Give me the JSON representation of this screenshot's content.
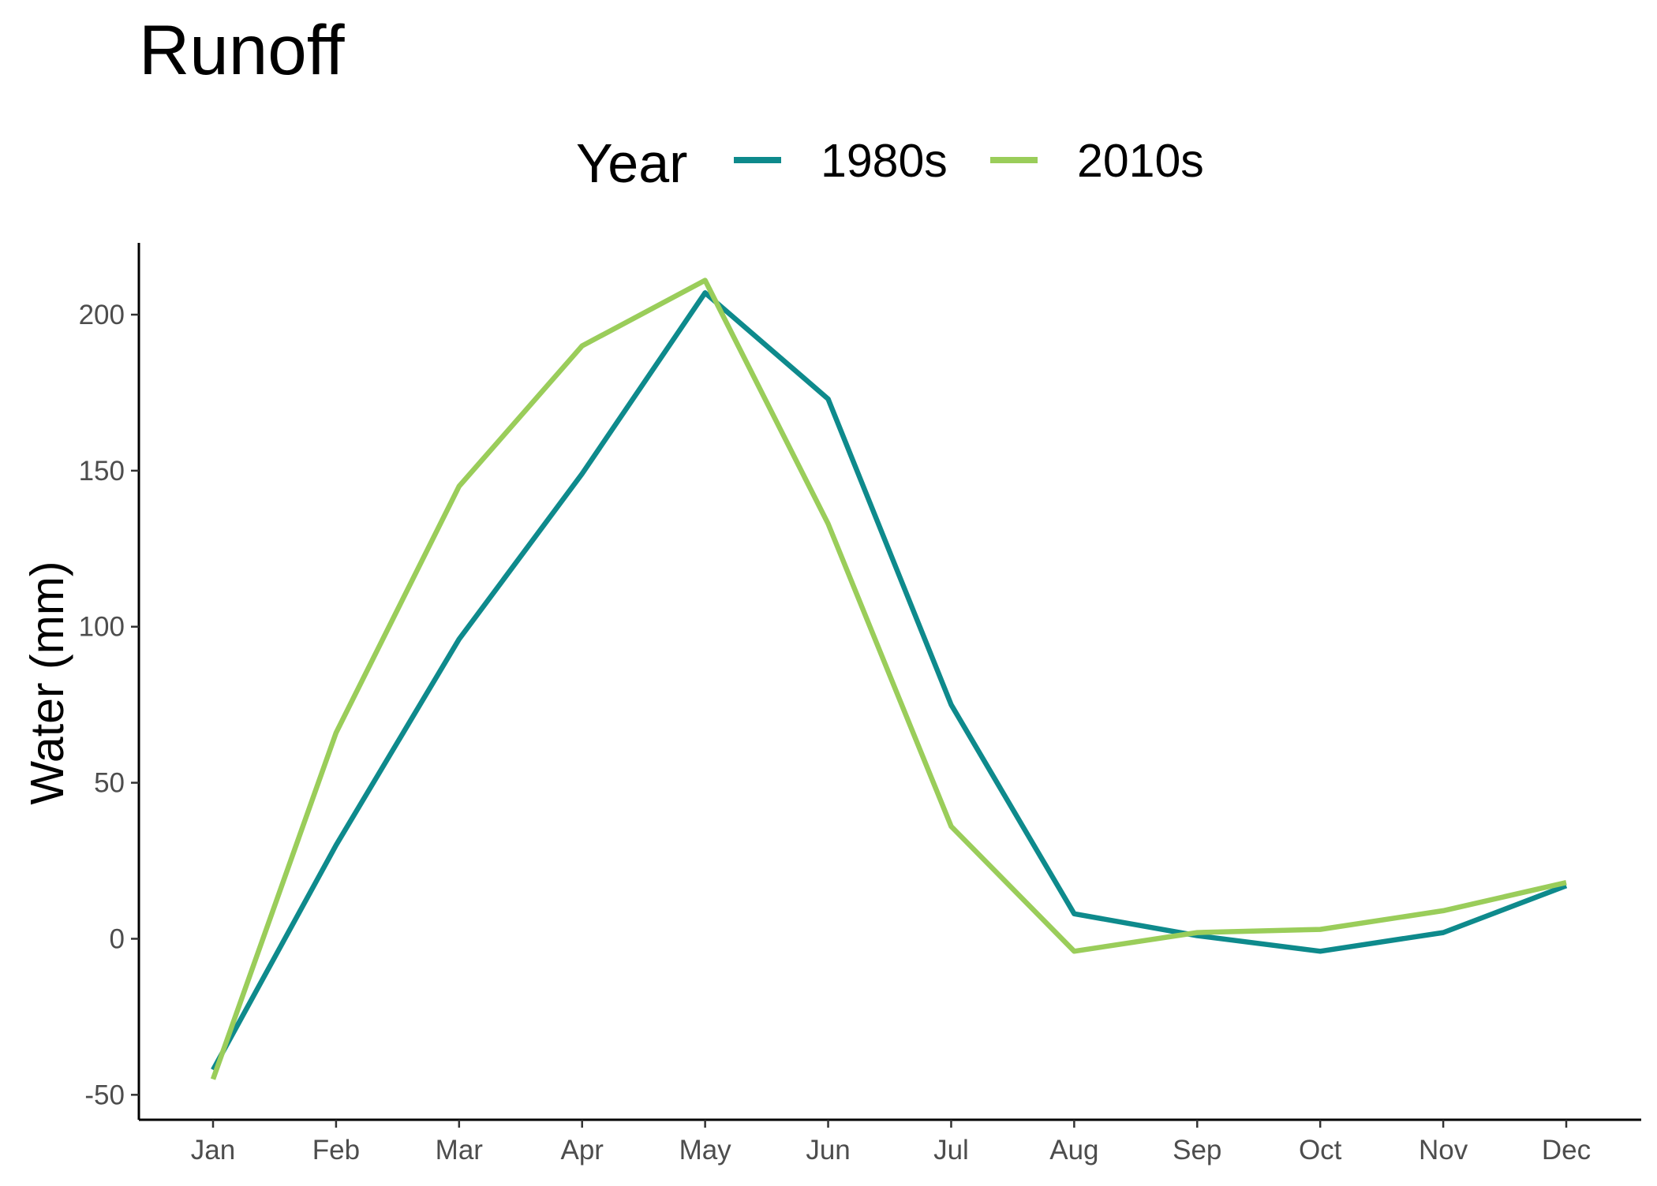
{
  "chart_data": {
    "type": "line",
    "title": "Runoff",
    "xlabel": "",
    "ylabel": "Water (mm)",
    "categories": [
      "Jan",
      "Feb",
      "Mar",
      "Apr",
      "May",
      "Jun",
      "Jul",
      "Aug",
      "Sep",
      "Oct",
      "Nov",
      "Dec"
    ],
    "ylim": [
      -58,
      223
    ],
    "yticks": [
      -50,
      0,
      50,
      100,
      150,
      200
    ],
    "ytick_labels": [
      "-50",
      "0",
      "50",
      "100",
      "150",
      "200"
    ],
    "legend": {
      "title": "Year",
      "position": "top"
    },
    "grid": false,
    "series": [
      {
        "name": "1980s",
        "color": "#0E8A8C",
        "values": [
          -42,
          30,
          96,
          149,
          207,
          173,
          75,
          8,
          1,
          -4,
          2,
          17
        ]
      },
      {
        "name": "2010s",
        "color": "#9ACD5A",
        "values": [
          -45,
          66,
          145,
          190,
          211,
          133,
          36,
          -4,
          2,
          3,
          9,
          18
        ]
      }
    ]
  }
}
